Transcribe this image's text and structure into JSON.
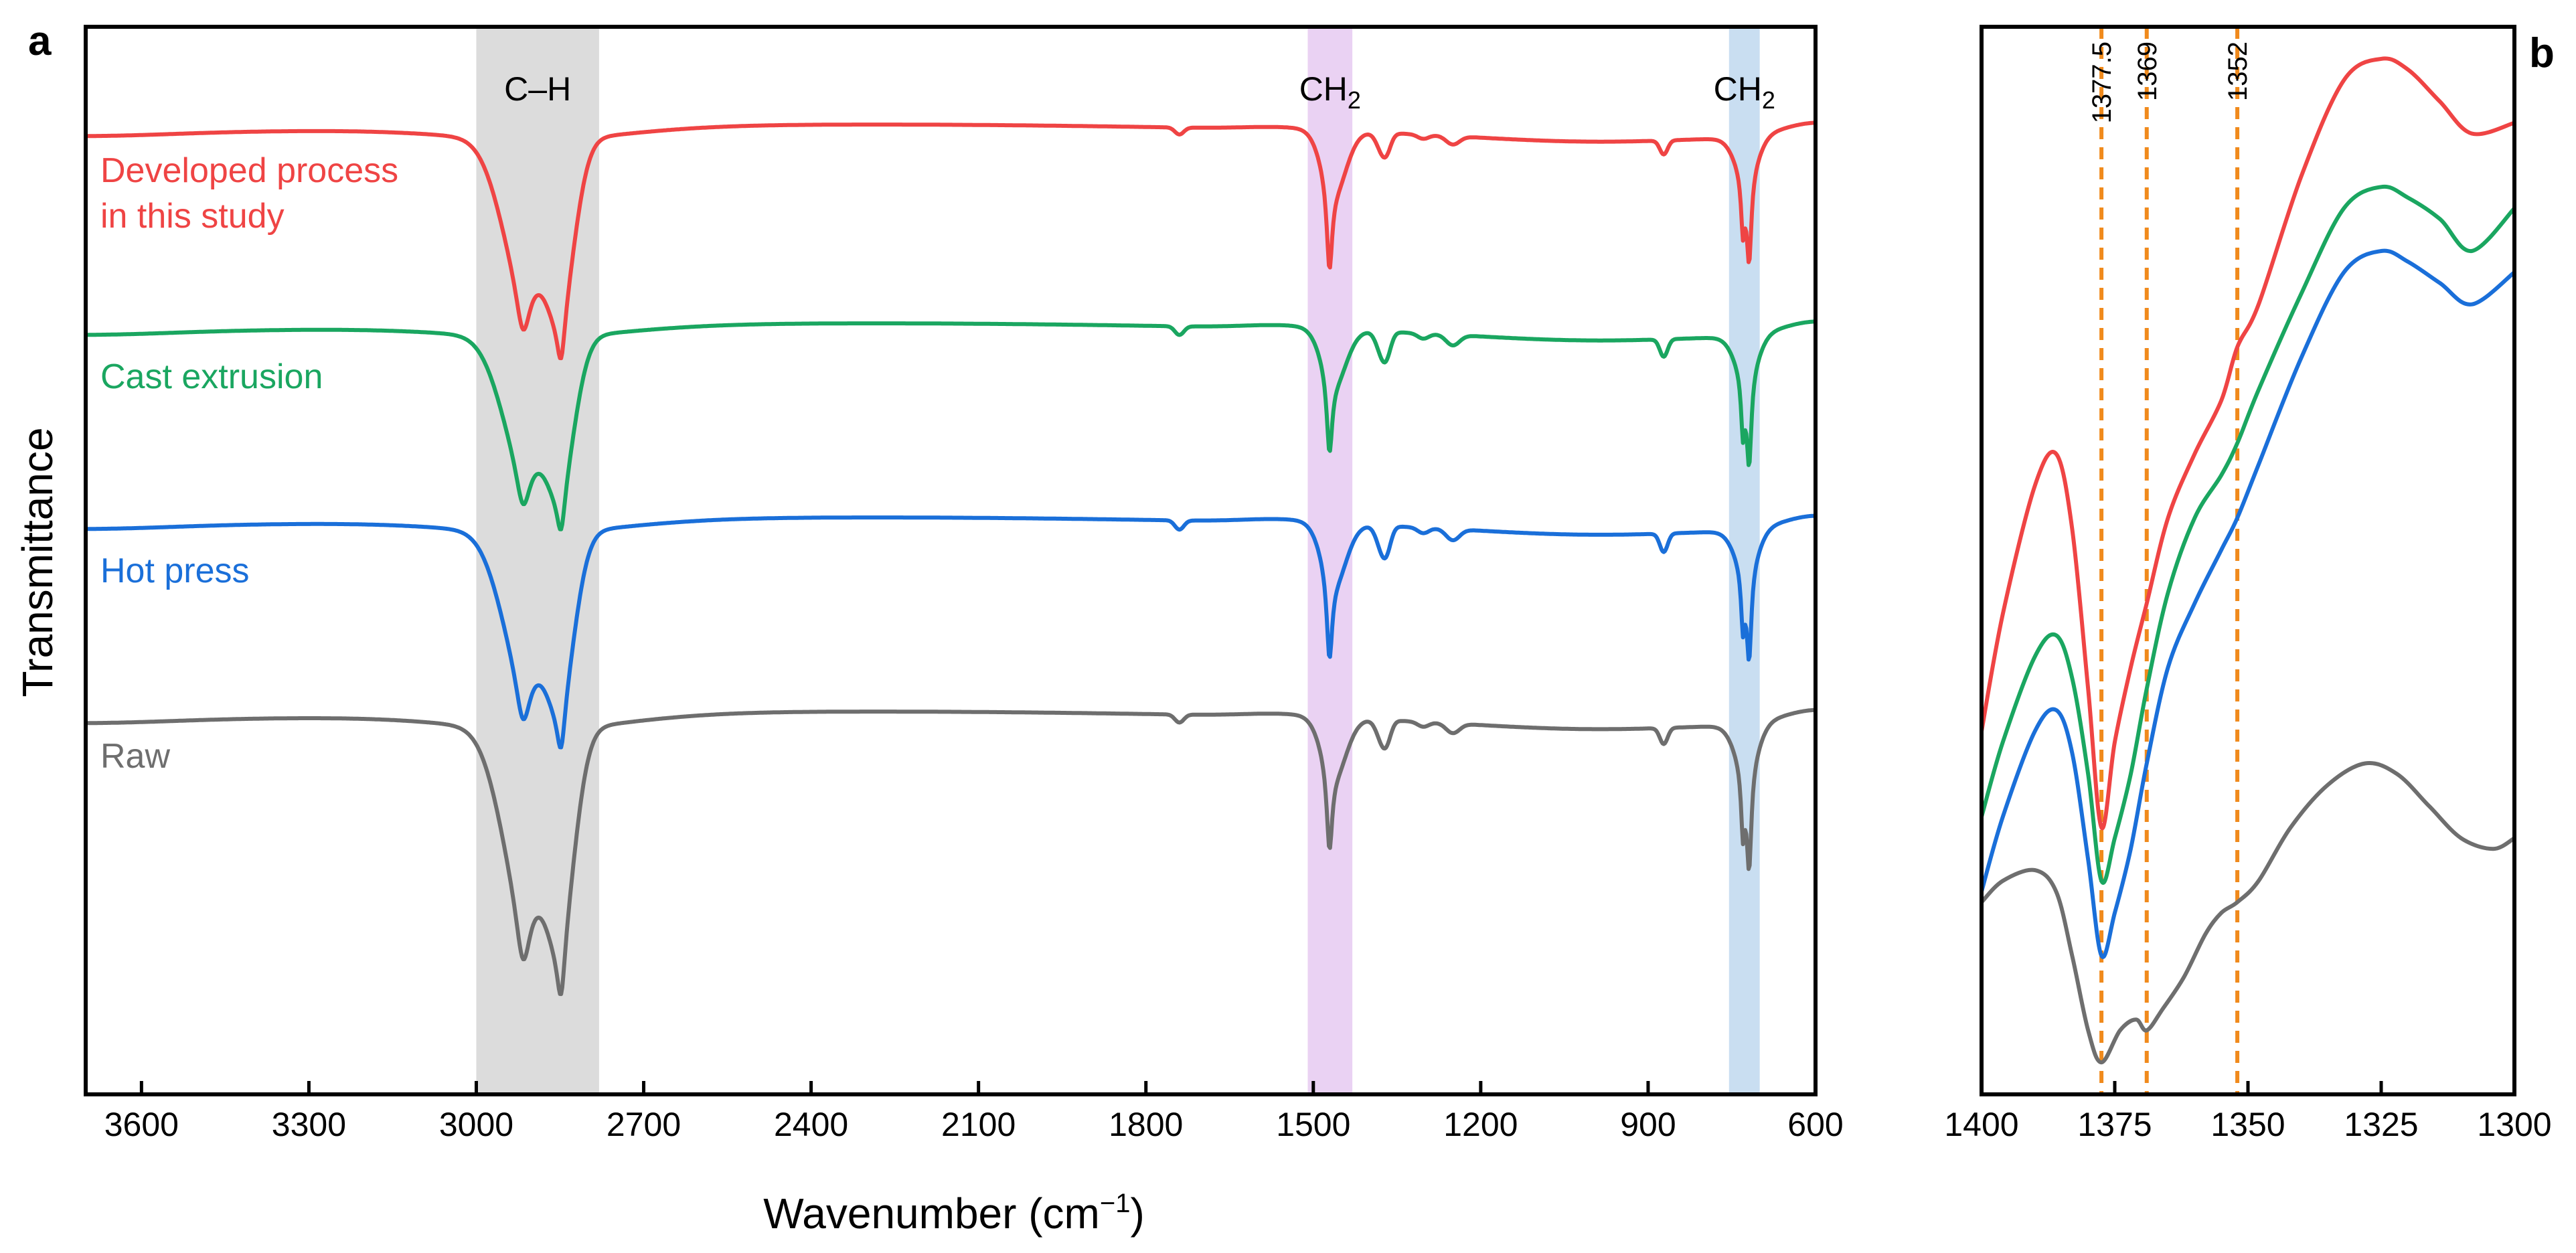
{
  "chart_data": [
    {
      "panel": "a",
      "type": "line",
      "xlabel": "Wavenumber (cm",
      "xlabel_sup": "−1",
      "xlabel_end": ")",
      "ylabel": "Transmittance",
      "xlim": [
        3700,
        600
      ],
      "xticks": [
        3600,
        3300,
        3000,
        2700,
        2400,
        2100,
        1800,
        1500,
        1200,
        900,
        600
      ],
      "shaded_regions": [
        {
          "label_main": "C–H",
          "label_sub": "",
          "range": [
            3000,
            2780
          ],
          "color": "#dcdcdc"
        },
        {
          "label_main": "CH",
          "label_sub": "2",
          "range": [
            1510,
            1430
          ],
          "color": "#ead2f3"
        },
        {
          "label_main": "CH",
          "label_sub": "2",
          "range": [
            755,
            700
          ],
          "color": "#c9def1"
        }
      ],
      "series": [
        {
          "name": "Developed process",
          "name_line2": "in this study",
          "color": "#ef4444",
          "baseline": 0
        },
        {
          "name": "Cast extrusion",
          "name_line2": "",
          "color": "#1aa660",
          "baseline": 1
        },
        {
          "name": "Hot press",
          "name_line2": "",
          "color": "#1a6fd9",
          "baseline": 2
        },
        {
          "name": "Raw",
          "name_line2": "",
          "color": "#6e6e6e",
          "baseline": 3
        }
      ]
    },
    {
      "panel": "b",
      "type": "line",
      "xlim": [
        1400,
        1300
      ],
      "xticks": [
        1400,
        1375,
        1350,
        1325,
        1300
      ],
      "reference_lines": [
        {
          "x": 1377.5,
          "label": "1377.5"
        },
        {
          "x": 1369,
          "label": "1369"
        },
        {
          "x": 1352,
          "label": "1352"
        }
      ],
      "reference_color": "#f08a1c",
      "series": [
        {
          "name": "Developed process in this study",
          "color": "#ef4444",
          "points": [
            [
              1400,
              0.34
            ],
            [
              1396,
              0.45
            ],
            [
              1390,
              0.57
            ],
            [
              1386,
              0.6
            ],
            [
              1383,
              0.53
            ],
            [
              1380,
              0.38
            ],
            [
              1377.5,
              0.25
            ],
            [
              1375,
              0.33
            ],
            [
              1372,
              0.4
            ],
            [
              1369,
              0.46
            ],
            [
              1365,
              0.54
            ],
            [
              1360,
              0.6
            ],
            [
              1355,
              0.65
            ],
            [
              1352,
              0.7
            ],
            [
              1348,
              0.74
            ],
            [
              1340,
              0.86
            ],
            [
              1332,
              0.95
            ],
            [
              1325,
              0.97
            ],
            [
              1320,
              0.96
            ],
            [
              1314,
              0.93
            ],
            [
              1308,
              0.9
            ],
            [
              1300,
              0.91
            ]
          ]
        },
        {
          "name": "Cast extrusion",
          "color": "#1aa660",
          "points": [
            [
              1400,
              0.26
            ],
            [
              1396,
              0.33
            ],
            [
              1390,
              0.41
            ],
            [
              1386,
              0.43
            ],
            [
              1383,
              0.39
            ],
            [
              1380,
              0.3
            ],
            [
              1377.5,
              0.2
            ],
            [
              1375,
              0.24
            ],
            [
              1372,
              0.3
            ],
            [
              1369,
              0.38
            ],
            [
              1365,
              0.47
            ],
            [
              1360,
              0.54
            ],
            [
              1355,
              0.58
            ],
            [
              1352,
              0.61
            ],
            [
              1348,
              0.66
            ],
            [
              1340,
              0.75
            ],
            [
              1332,
              0.83
            ],
            [
              1325,
              0.85
            ],
            [
              1320,
              0.84
            ],
            [
              1314,
              0.82
            ],
            [
              1308,
              0.79
            ],
            [
              1300,
              0.83
            ]
          ]
        },
        {
          "name": "Hot press",
          "color": "#1a6fd9",
          "points": [
            [
              1400,
              0.19
            ],
            [
              1396,
              0.26
            ],
            [
              1390,
              0.34
            ],
            [
              1386,
              0.36
            ],
            [
              1383,
              0.32
            ],
            [
              1380,
              0.22
            ],
            [
              1377.5,
              0.13
            ],
            [
              1375,
              0.17
            ],
            [
              1372,
              0.23
            ],
            [
              1369,
              0.31
            ],
            [
              1365,
              0.4
            ],
            [
              1360,
              0.46
            ],
            [
              1355,
              0.51
            ],
            [
              1352,
              0.54
            ],
            [
              1348,
              0.59
            ],
            [
              1340,
              0.69
            ],
            [
              1332,
              0.77
            ],
            [
              1325,
              0.79
            ],
            [
              1320,
              0.78
            ],
            [
              1314,
              0.76
            ],
            [
              1308,
              0.74
            ],
            [
              1300,
              0.77
            ]
          ]
        },
        {
          "name": "Raw",
          "color": "#6e6e6e",
          "points": [
            [
              1400,
              0.18
            ],
            [
              1396,
              0.2
            ],
            [
              1390,
              0.21
            ],
            [
              1386,
              0.19
            ],
            [
              1383,
              0.13
            ],
            [
              1380,
              0.06
            ],
            [
              1377.5,
              0.03
            ],
            [
              1374,
              0.06
            ],
            [
              1371,
              0.07
            ],
            [
              1369,
              0.06
            ],
            [
              1366,
              0.08
            ],
            [
              1362,
              0.11
            ],
            [
              1358,
              0.15
            ],
            [
              1355,
              0.17
            ],
            [
              1352,
              0.18
            ],
            [
              1348,
              0.2
            ],
            [
              1342,
              0.25
            ],
            [
              1335,
              0.29
            ],
            [
              1328,
              0.31
            ],
            [
              1322,
              0.3
            ],
            [
              1316,
              0.27
            ],
            [
              1310,
              0.24
            ],
            [
              1304,
              0.23
            ],
            [
              1300,
              0.24
            ]
          ]
        }
      ]
    }
  ]
}
